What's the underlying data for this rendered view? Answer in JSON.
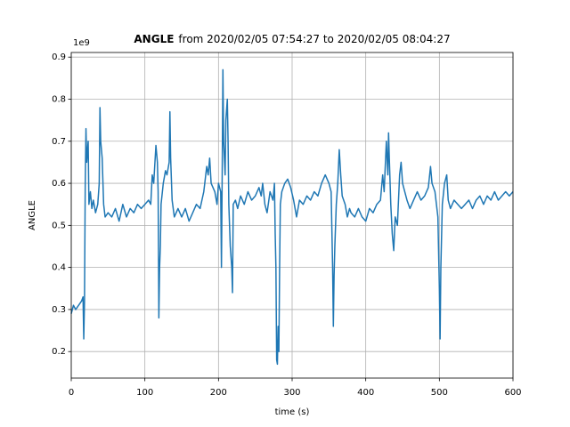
{
  "chart_data": {
    "type": "line",
    "title_bold": "ANGLE",
    "title": "from 2020/02/05 07:54:27 to 2020/02/05 08:04:27",
    "x_label": "time (s)",
    "y_label": "ANGLE",
    "y_offset_label": "1e9",
    "xlim": [
      0,
      600
    ],
    "xticks": [
      0,
      100,
      200,
      300,
      400,
      500,
      600
    ],
    "ylim": [
      0.137,
      0.911
    ],
    "yticks": [
      0.2,
      0.3,
      0.4,
      0.5,
      0.6,
      0.7,
      0.8,
      0.9
    ],
    "grid": true,
    "x": [
      0,
      3,
      6,
      10,
      14,
      16,
      17,
      18,
      19,
      20,
      21,
      23,
      24,
      26,
      28,
      30,
      33,
      36,
      38,
      39,
      40,
      42,
      44,
      46,
      50,
      55,
      60,
      65,
      70,
      75,
      80,
      85,
      90,
      95,
      100,
      105,
      108,
      110,
      112,
      115,
      117,
      118,
      119,
      120,
      121,
      122,
      125,
      128,
      130,
      133,
      134,
      135,
      137,
      140,
      145,
      150,
      155,
      160,
      165,
      170,
      175,
      180,
      184,
      186,
      188,
      190,
      195,
      198,
      200,
      203,
      204,
      205,
      206,
      207,
      209,
      210,
      212,
      213,
      214,
      216,
      218,
      219,
      220,
      223,
      226,
      230,
      235,
      240,
      245,
      250,
      255,
      258,
      260,
      263,
      266,
      270,
      274,
      276,
      277,
      278,
      279,
      280,
      281,
      282,
      283,
      284,
      286,
      290,
      294,
      298,
      302,
      306,
      310,
      315,
      320,
      325,
      330,
      335,
      340,
      345,
      350,
      353,
      355,
      356,
      357,
      358,
      360,
      362,
      364,
      366,
      368,
      372,
      375,
      378,
      380,
      385,
      390,
      395,
      400,
      405,
      410,
      415,
      420,
      423,
      425,
      428,
      430,
      431,
      432,
      434,
      436,
      438,
      440,
      443,
      446,
      448,
      450,
      453,
      456,
      460,
      465,
      470,
      475,
      480,
      485,
      488,
      490,
      494,
      498,
      500,
      501,
      502,
      504,
      507,
      510,
      512,
      515,
      520,
      525,
      530,
      535,
      540,
      545,
      550,
      555,
      560,
      565,
      570,
      575,
      580,
      585,
      590,
      595,
      600
    ],
    "series": [
      {
        "name": "ANGLE",
        "color": "#1f77b4",
        "values": [
          0.29,
          0.31,
          0.3,
          0.31,
          0.32,
          0.33,
          0.23,
          0.32,
          0.6,
          0.73,
          0.65,
          0.7,
          0.55,
          0.58,
          0.54,
          0.56,
          0.53,
          0.55,
          0.6,
          0.78,
          0.7,
          0.66,
          0.55,
          0.52,
          0.53,
          0.52,
          0.54,
          0.51,
          0.55,
          0.52,
          0.54,
          0.53,
          0.55,
          0.54,
          0.55,
          0.56,
          0.55,
          0.62,
          0.6,
          0.69,
          0.65,
          0.58,
          0.28,
          0.4,
          0.45,
          0.55,
          0.6,
          0.63,
          0.62,
          0.65,
          0.77,
          0.66,
          0.56,
          0.52,
          0.54,
          0.52,
          0.54,
          0.51,
          0.53,
          0.55,
          0.54,
          0.58,
          0.64,
          0.62,
          0.66,
          0.6,
          0.58,
          0.55,
          0.6,
          0.58,
          0.4,
          0.62,
          0.87,
          0.7,
          0.62,
          0.75,
          0.8,
          0.7,
          0.55,
          0.45,
          0.4,
          0.34,
          0.55,
          0.56,
          0.54,
          0.57,
          0.55,
          0.58,
          0.56,
          0.57,
          0.59,
          0.57,
          0.6,
          0.55,
          0.53,
          0.58,
          0.56,
          0.6,
          0.48,
          0.4,
          0.18,
          0.17,
          0.26,
          0.2,
          0.4,
          0.55,
          0.58,
          0.6,
          0.61,
          0.59,
          0.56,
          0.52,
          0.56,
          0.55,
          0.57,
          0.56,
          0.58,
          0.57,
          0.6,
          0.62,
          0.6,
          0.58,
          0.4,
          0.26,
          0.38,
          0.45,
          0.55,
          0.6,
          0.68,
          0.62,
          0.57,
          0.55,
          0.52,
          0.54,
          0.53,
          0.52,
          0.54,
          0.52,
          0.51,
          0.54,
          0.53,
          0.55,
          0.56,
          0.62,
          0.58,
          0.7,
          0.62,
          0.72,
          0.66,
          0.55,
          0.48,
          0.44,
          0.52,
          0.5,
          0.62,
          0.65,
          0.6,
          0.58,
          0.56,
          0.54,
          0.56,
          0.58,
          0.56,
          0.57,
          0.59,
          0.64,
          0.6,
          0.58,
          0.52,
          0.35,
          0.23,
          0.4,
          0.55,
          0.6,
          0.62,
          0.56,
          0.54,
          0.56,
          0.55,
          0.54,
          0.55,
          0.56,
          0.54,
          0.56,
          0.57,
          0.55,
          0.57,
          0.56,
          0.58,
          0.56,
          0.57,
          0.58,
          0.57,
          0.58
        ]
      }
    ]
  }
}
